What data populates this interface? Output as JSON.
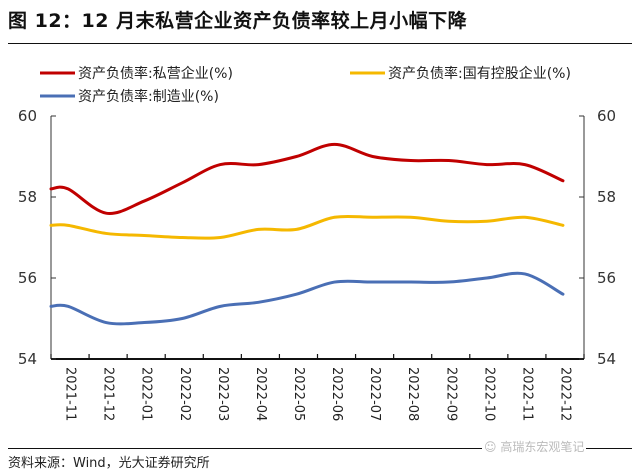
{
  "title": "图 12：12 月末私营企业资产负债率较上月小幅下降",
  "source": "资料来源：Wind，光大证券研究所",
  "watermark": "高瑞东宏观笔记",
  "chart_data": {
    "type": "line",
    "title": "12 月末私营企业资产负债率较上月小幅下降",
    "xlabel": "",
    "ylabel": "",
    "ylim": [
      54,
      60
    ],
    "y2lim": [
      54,
      60
    ],
    "yticks": [
      54,
      56,
      58,
      60
    ],
    "grid": false,
    "legend_position": "top",
    "categories": [
      "2021-11",
      "2021-12",
      "2022-01",
      "2022-02",
      "2022-03",
      "2022-04",
      "2022-05",
      "2022-06",
      "2022-07",
      "2022-08",
      "2022-09",
      "2022-10",
      "2022-11",
      "2022-12"
    ],
    "series": [
      {
        "name": "资产负债率:私营企业(%)",
        "color": "#C00000",
        "values": [
          58.2,
          57.6,
          57.9,
          58.35,
          58.8,
          58.8,
          59.0,
          59.3,
          59.0,
          58.9,
          58.9,
          58.8,
          58.8,
          58.4
        ]
      },
      {
        "name": "资产负债率:国有控股企业(%)",
        "color": "#F5B800",
        "values": [
          57.3,
          57.1,
          57.05,
          57.0,
          57.0,
          57.2,
          57.2,
          57.5,
          57.5,
          57.5,
          57.4,
          57.4,
          57.5,
          57.3
        ]
      },
      {
        "name": "资产负债率:制造业(%)",
        "color": "#4A6FB5",
        "values": [
          55.3,
          54.9,
          54.9,
          55.0,
          55.3,
          55.4,
          55.6,
          55.9,
          55.9,
          55.9,
          55.9,
          56.0,
          56.1,
          55.6
        ]
      }
    ]
  }
}
